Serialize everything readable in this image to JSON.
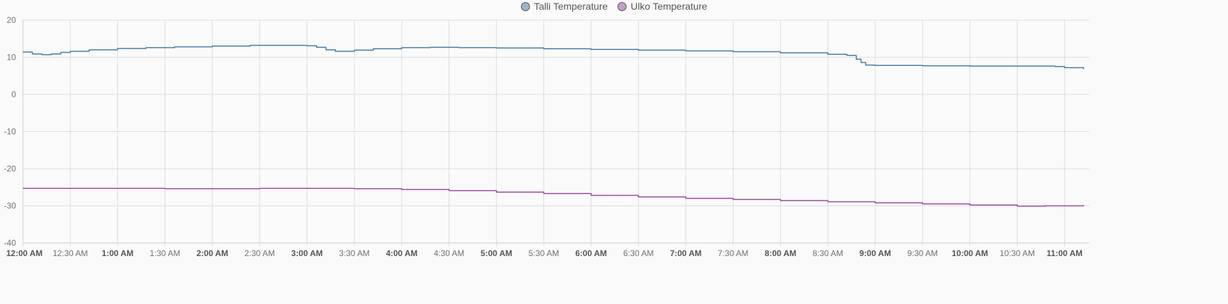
{
  "chart_data": {
    "type": "line",
    "title": "",
    "xlabel": "",
    "ylabel": "",
    "ylim": [
      -40,
      20
    ],
    "yticks": [
      20,
      10,
      0,
      -10,
      -20,
      -30,
      -40
    ],
    "grid": true,
    "legend_position": "top-center",
    "x_ticks": [
      {
        "label": "12:00 AM",
        "hour": 0,
        "major": true
      },
      {
        "label": "12:30 AM",
        "hour": 0.5,
        "major": false
      },
      {
        "label": "1:00 AM",
        "hour": 1,
        "major": true
      },
      {
        "label": "1:30 AM",
        "hour": 1.5,
        "major": false
      },
      {
        "label": "2:00 AM",
        "hour": 2,
        "major": true
      },
      {
        "label": "2:30 AM",
        "hour": 2.5,
        "major": false
      },
      {
        "label": "3:00 AM",
        "hour": 3,
        "major": true
      },
      {
        "label": "3:30 AM",
        "hour": 3.5,
        "major": false
      },
      {
        "label": "4:00 AM",
        "hour": 4,
        "major": true
      },
      {
        "label": "4:30 AM",
        "hour": 4.5,
        "major": false
      },
      {
        "label": "5:00 AM",
        "hour": 5,
        "major": true
      },
      {
        "label": "5:30 AM",
        "hour": 5.5,
        "major": false
      },
      {
        "label": "6:00 AM",
        "hour": 6,
        "major": true
      },
      {
        "label": "6:30 AM",
        "hour": 6.5,
        "major": false
      },
      {
        "label": "7:00 AM",
        "hour": 7,
        "major": true
      },
      {
        "label": "7:30 AM",
        "hour": 7.5,
        "major": false
      },
      {
        "label": "8:00 AM",
        "hour": 8,
        "major": true
      },
      {
        "label": "8:30 AM",
        "hour": 8.5,
        "major": false
      },
      {
        "label": "9:00 AM",
        "hour": 9,
        "major": true
      },
      {
        "label": "9:30 AM",
        "hour": 9.5,
        "major": false
      },
      {
        "label": "10:00 AM",
        "hour": 10,
        "major": true
      },
      {
        "label": "10:30 AM",
        "hour": 10.5,
        "major": false
      },
      {
        "label": "11:00 AM",
        "hour": 11,
        "major": true
      }
    ],
    "xlim": [
      0,
      11.2
    ],
    "series": [
      {
        "name": "Talli Temperature",
        "color": "#4a7ba6",
        "swatch": "#9bb3cf",
        "points": [
          [
            0,
            11.4
          ],
          [
            0.1,
            10.9
          ],
          [
            0.2,
            10.7
          ],
          [
            0.3,
            10.9
          ],
          [
            0.4,
            11.3
          ],
          [
            0.5,
            11.6
          ],
          [
            0.7,
            12.0
          ],
          [
            1.0,
            12.4
          ],
          [
            1.3,
            12.6
          ],
          [
            1.6,
            12.8
          ],
          [
            2.0,
            13.0
          ],
          [
            2.4,
            13.2
          ],
          [
            2.8,
            13.2
          ],
          [
            3.0,
            13.1
          ],
          [
            3.1,
            12.7
          ],
          [
            3.2,
            12.0
          ],
          [
            3.3,
            11.6
          ],
          [
            3.4,
            11.6
          ],
          [
            3.5,
            11.9
          ],
          [
            3.7,
            12.3
          ],
          [
            4.0,
            12.6
          ],
          [
            4.3,
            12.7
          ],
          [
            4.6,
            12.6
          ],
          [
            5.0,
            12.5
          ],
          [
            5.5,
            12.3
          ],
          [
            6.0,
            12.1
          ],
          [
            6.5,
            11.9
          ],
          [
            7.0,
            11.7
          ],
          [
            7.5,
            11.5
          ],
          [
            8.0,
            11.2
          ],
          [
            8.5,
            10.8
          ],
          [
            8.7,
            10.5
          ],
          [
            8.8,
            9.5
          ],
          [
            8.85,
            8.6
          ],
          [
            8.9,
            7.9
          ],
          [
            9.0,
            7.8
          ],
          [
            9.5,
            7.7
          ],
          [
            10.0,
            7.6
          ],
          [
            10.5,
            7.6
          ],
          [
            10.9,
            7.5
          ],
          [
            11.0,
            7.2
          ],
          [
            11.2,
            6.8
          ]
        ]
      },
      {
        "name": "Ulko Temperature",
        "color": "#9b4aa0",
        "swatch": "#c99acd",
        "points": [
          [
            0,
            -25.3
          ],
          [
            0.5,
            -25.3
          ],
          [
            1.0,
            -25.3
          ],
          [
            1.5,
            -25.4
          ],
          [
            2.0,
            -25.4
          ],
          [
            2.5,
            -25.3
          ],
          [
            3.0,
            -25.3
          ],
          [
            3.5,
            -25.4
          ],
          [
            4.0,
            -25.6
          ],
          [
            4.5,
            -25.9
          ],
          [
            5.0,
            -26.3
          ],
          [
            5.5,
            -26.7
          ],
          [
            6.0,
            -27.2
          ],
          [
            6.5,
            -27.6
          ],
          [
            7.0,
            -28.0
          ],
          [
            7.5,
            -28.3
          ],
          [
            8.0,
            -28.6
          ],
          [
            8.5,
            -28.9
          ],
          [
            9.0,
            -29.2
          ],
          [
            9.5,
            -29.5
          ],
          [
            10.0,
            -29.8
          ],
          [
            10.5,
            -30.1
          ],
          [
            10.8,
            -30.0
          ],
          [
            11.2,
            -29.8
          ]
        ]
      }
    ]
  }
}
